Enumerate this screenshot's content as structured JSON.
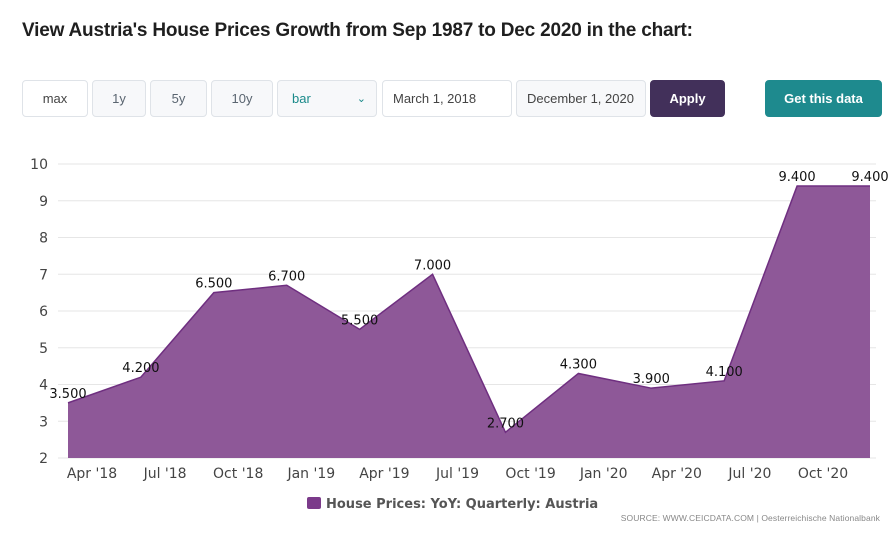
{
  "title": "View Austria's House Prices Growth from Sep 1987 to Dec 2020 in the chart:",
  "controls": {
    "ranges": [
      "max",
      "1y",
      "5y",
      "10y"
    ],
    "chart_type": "bar",
    "start_date": "March 1, 2018",
    "end_date": "December 1, 2020",
    "apply_label": "Apply",
    "get_data_label": "Get this data"
  },
  "source": "SOURCE: WWW.CEICDATA.COM | Oesterreichische Nationalbank",
  "colors": {
    "fill": "#8e5898",
    "line": "#6f2f80",
    "legend": "#7b3a8a",
    "accent_teal": "#1e8a8e",
    "apply": "#42305a"
  },
  "chart_data": {
    "type": "area",
    "x": [
      "Mar 2018",
      "Jun 2018",
      "Sep 2018",
      "Dec 2018",
      "Mar 2019",
      "Jun 2019",
      "Sep 2019",
      "Dec 2019",
      "Mar 2020",
      "Jun 2020",
      "Sep 2020",
      "Dec 2020"
    ],
    "x_tick_labels": [
      "Apr '18",
      "Jul '18",
      "Oct '18",
      "Jan '19",
      "Apr '19",
      "Jul '19",
      "Oct '19",
      "Jan '20",
      "Apr '20",
      "Jul '20",
      "Oct '20"
    ],
    "series": [
      {
        "name": "House Prices: YoY: Quarterly: Austria",
        "values": [
          3.5,
          4.2,
          6.5,
          6.7,
          5.5,
          7.0,
          2.7,
          4.3,
          3.9,
          4.1,
          9.4,
          9.4
        ],
        "data_labels": [
          "3.500",
          "4.200",
          "6.500",
          "6.700",
          "5.500",
          "7.000",
          "2.700",
          "4.300",
          "3.900",
          "4.100",
          "9.400",
          "9.400"
        ]
      }
    ],
    "y_ticks": [
      "2",
      "3",
      "4",
      "5",
      "6",
      "7",
      "8",
      "9",
      "10"
    ],
    "ylim": [
      2,
      10
    ],
    "grid": true,
    "legend": "bottom-center"
  }
}
